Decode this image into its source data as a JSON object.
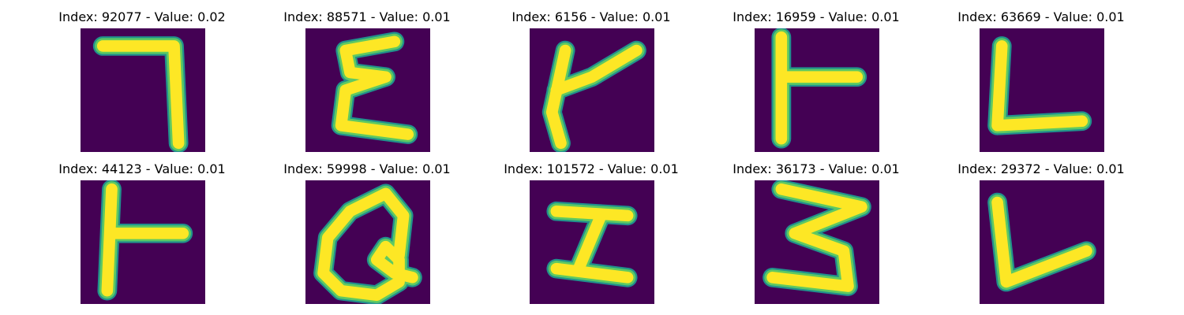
{
  "colors": {
    "background": "#440154",
    "stroke_core": "#fde725",
    "stroke_edge": "#5ec962",
    "stroke_mid": "#21918c"
  },
  "panels": [
    {
      "title": "Index: 92077 - Value: 0.02",
      "glyph": "seven"
    },
    {
      "title": "Index: 88571 - Value: 0.01",
      "glyph": "sigma"
    },
    {
      "title": "Index: 6156 - Value: 0.01",
      "glyph": "hook"
    },
    {
      "title": "Index: 16959 - Value: 0.01",
      "glyph": "tee"
    },
    {
      "title": "Index: 63669 - Value: 0.01",
      "glyph": "ell"
    },
    {
      "title": "Index: 44123 - Value: 0.01",
      "glyph": "tee2"
    },
    {
      "title": "Index: 59998 - Value: 0.01",
      "glyph": "loop"
    },
    {
      "title": "Index: 101572 - Value: 0.01",
      "glyph": "zed"
    },
    {
      "title": "Index: 36173 - Value: 0.01",
      "glyph": "three"
    },
    {
      "title": "Index: 29372 - Value: 0.01",
      "glyph": "ell2"
    }
  ]
}
